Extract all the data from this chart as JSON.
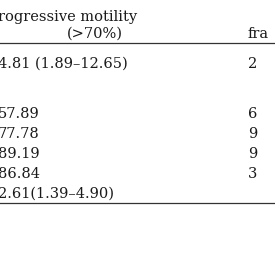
{
  "col1_header_line1": "rogressive motility",
  "col1_header_line2": "(>70%)",
  "col2_header": "fra",
  "row_data": [
    [
      "4.81 (1.89–12.65)",
      "2"
    ],
    [
      "",
      ""
    ],
    [
      "57.89",
      "6"
    ],
    [
      "77.78",
      "9"
    ],
    [
      "89.19",
      "9"
    ],
    [
      "86.84",
      "3"
    ],
    [
      "2.61(1.39–4.90)",
      ""
    ]
  ],
  "background_color": "#ffffff",
  "text_color": "#1a1a1a",
  "font_size": 10.5,
  "line_color": "#333333"
}
